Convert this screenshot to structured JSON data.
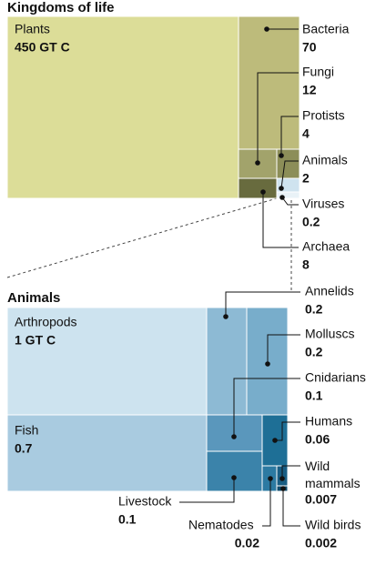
{
  "chart_data": [
    {
      "type": "treemap",
      "title": "Kingdoms of life",
      "categories": [
        "Plants",
        "Bacteria",
        "Fungi",
        "Protists",
        "Animals",
        "Viruses",
        "Archaea"
      ],
      "values": [
        450,
        70,
        12,
        4,
        2,
        0.2,
        8
      ],
      "value_labels": [
        "450 GT C",
        "70",
        "12",
        "4",
        "2",
        "0.2",
        "8"
      ],
      "colors": [
        "#dcdd98",
        "#bdbb7b",
        "#a2a36b",
        "#8c8e58",
        "#cfe3ef",
        "#e9f2f7",
        "#686b3e"
      ]
    },
    {
      "type": "treemap",
      "title": "Animals",
      "categories": [
        "Arthropods",
        "Fish",
        "Annelids",
        "Molluscs",
        "Cnidarians",
        "Humans",
        "Wild mammals",
        "Wild birds",
        "Nematodes",
        "Livestock"
      ],
      "values": [
        1,
        0.7,
        0.2,
        0.2,
        0.1,
        0.06,
        0.007,
        0.002,
        0.02,
        0.1
      ],
      "value_labels": [
        "1 GT C",
        "0.7",
        "0.2",
        "0.2",
        "0.1",
        "0.06",
        "0.007",
        "0.002",
        "0.02",
        "0.1"
      ],
      "colors": [
        "#cde3ef",
        "#a9cbe0",
        "#8dbad4",
        "#78adcb",
        "#5a97bc",
        "#1e6f96",
        "#185d83",
        "#0e4a6b",
        "#2c7aa2",
        "#3b83aa"
      ]
    }
  ]
}
